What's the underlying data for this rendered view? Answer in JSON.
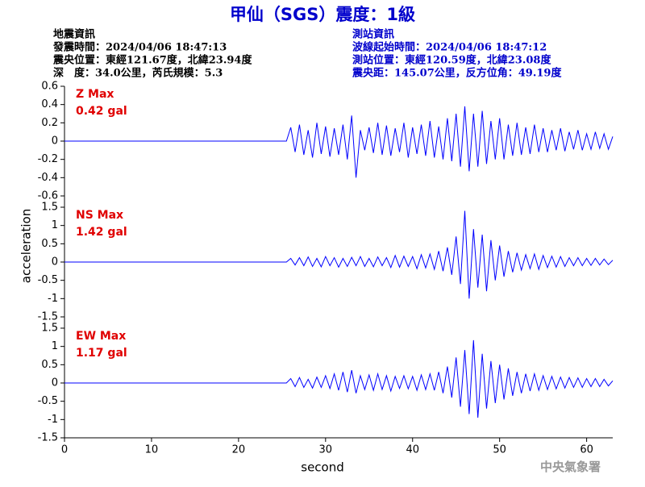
{
  "header": {
    "title": "甲仙（SGS）震度：1級",
    "left": [
      "地震資訊",
      "發震時間：2024/04/06 18:47:13",
      "震央位置：東經121.67度，北緯23.94度",
      "深　度：34.0公里，芮氏規模：5.3"
    ],
    "right": [
      "測站資訊",
      "波線起始時間：2024/04/06 18:47:12",
      "測站位置：東經120.59度，北緯23.08度",
      "震央距：145.07公里，反方位角：49.19度"
    ]
  },
  "footer": "中央氣象署",
  "chart_data": [
    {
      "type": "line",
      "color": "#0000ff",
      "annotations": [
        "Z Max",
        "0.42 gal"
      ],
      "xlim": [
        0,
        63
      ],
      "ylim": [
        -0.6,
        0.6
      ],
      "yticks": [
        -0.6,
        -0.4,
        -0.2,
        0,
        0.2,
        0.4,
        0.6
      ],
      "x": [
        0,
        25.5,
        26,
        26.5,
        27,
        27.5,
        28,
        28.5,
        29,
        29.5,
        30,
        30.5,
        31,
        31.5,
        32,
        32.5,
        33,
        33.5,
        34,
        34.5,
        35,
        35.5,
        36,
        36.5,
        37,
        37.5,
        38,
        38.5,
        39,
        39.5,
        40,
        40.5,
        41,
        41.5,
        42,
        42.5,
        43,
        43.5,
        44,
        44.5,
        45,
        45.5,
        46,
        46.5,
        47,
        47.5,
        48,
        48.5,
        49,
        49.5,
        50,
        50.5,
        51,
        51.5,
        52,
        52.5,
        53,
        53.5,
        54,
        54.5,
        55,
        55.5,
        56,
        56.5,
        57,
        57.5,
        58,
        58.5,
        59,
        59.5,
        60,
        60.5,
        61,
        61.5,
        62,
        62.5,
        63
      ],
      "values": [
        0,
        0,
        0.15,
        -0.12,
        0.18,
        -0.15,
        0.12,
        -0.18,
        0.2,
        -0.14,
        0.16,
        -0.17,
        0.14,
        -0.15,
        0.18,
        -0.2,
        0.28,
        -0.4,
        0.12,
        -0.1,
        0.15,
        -0.13,
        0.2,
        -0.15,
        0.17,
        -0.16,
        0.14,
        -0.12,
        0.2,
        -0.18,
        0.15,
        -0.14,
        0.18,
        -0.16,
        0.22,
        -0.18,
        0.16,
        -0.2,
        0.25,
        -0.22,
        0.3,
        -0.28,
        0.38,
        -0.33,
        0.3,
        -0.28,
        0.33,
        -0.25,
        0.22,
        -0.2,
        0.25,
        -0.2,
        0.18,
        -0.16,
        0.2,
        -0.15,
        0.15,
        -0.14,
        0.18,
        -0.12,
        0.14,
        -0.12,
        0.12,
        -0.1,
        0.14,
        -0.11,
        0.1,
        -0.09,
        0.12,
        -0.1,
        0.08,
        -0.09,
        0.1,
        -0.08,
        0.08,
        -0.09,
        0.05
      ]
    },
    {
      "type": "line",
      "color": "#0000ff",
      "annotations": [
        "NS Max",
        "1.42 gal"
      ],
      "y_label": "acceleration",
      "xlim": [
        0,
        63
      ],
      "ylim": [
        -1.5,
        1.5
      ],
      "yticks": [
        -1.5,
        -1,
        -0.5,
        0,
        0.5,
        1,
        1.5
      ],
      "x": [
        0,
        25.5,
        26,
        26.5,
        27,
        27.5,
        28,
        28.5,
        29,
        29.5,
        30,
        30.5,
        31,
        31.5,
        32,
        32.5,
        33,
        33.5,
        34,
        34.5,
        35,
        35.5,
        36,
        36.5,
        37,
        37.5,
        38,
        38.5,
        39,
        39.5,
        40,
        40.5,
        41,
        41.5,
        42,
        42.5,
        43,
        43.5,
        44,
        44.5,
        45,
        45.5,
        46,
        46.5,
        47,
        47.5,
        48,
        48.5,
        49,
        49.5,
        50,
        50.5,
        51,
        51.5,
        52,
        52.5,
        53,
        53.5,
        54,
        54.5,
        55,
        55.5,
        56,
        56.5,
        57,
        57.5,
        58,
        58.5,
        59,
        59.5,
        60,
        60.5,
        61,
        61.5,
        62,
        62.5,
        63
      ],
      "values": [
        0,
        0,
        0.1,
        -0.08,
        0.12,
        -0.1,
        0.14,
        -0.12,
        0.1,
        -0.13,
        0.15,
        -0.1,
        0.12,
        -0.14,
        0.1,
        -0.12,
        0.13,
        -0.1,
        0.15,
        -0.12,
        0.1,
        -0.13,
        0.14,
        -0.1,
        0.12,
        -0.15,
        0.18,
        -0.14,
        0.16,
        -0.12,
        0.15,
        -0.18,
        0.2,
        -0.16,
        0.22,
        -0.2,
        0.3,
        -0.25,
        0.4,
        -0.35,
        0.7,
        -0.6,
        1.4,
        -1.0,
        0.9,
        -0.7,
        0.75,
        -0.8,
        0.6,
        -0.5,
        0.45,
        -0.4,
        0.3,
        -0.28,
        0.25,
        -0.22,
        0.2,
        -0.18,
        0.22,
        -0.2,
        0.18,
        -0.15,
        0.16,
        -0.14,
        0.15,
        -0.12,
        0.12,
        -0.1,
        0.12,
        -0.1,
        0.1,
        -0.09,
        0.1,
        -0.08,
        0.08,
        -0.07,
        0.05
      ]
    },
    {
      "type": "line",
      "color": "#0000ff",
      "annotations": [
        "EW Max",
        "1.17 gal"
      ],
      "x_label": "second",
      "xlim": [
        0,
        63
      ],
      "xticks": [
        0,
        10,
        20,
        30,
        40,
        50,
        60
      ],
      "ylim": [
        -1.5,
        1.5
      ],
      "yticks": [
        -1.5,
        -1,
        -0.5,
        0,
        0.5,
        1,
        1.5
      ],
      "x": [
        0,
        25.5,
        26,
        26.5,
        27,
        27.5,
        28,
        28.5,
        29,
        29.5,
        30,
        30.5,
        31,
        31.5,
        32,
        32.5,
        33,
        33.5,
        34,
        34.5,
        35,
        35.5,
        36,
        36.5,
        37,
        37.5,
        38,
        38.5,
        39,
        39.5,
        40,
        40.5,
        41,
        41.5,
        42,
        42.5,
        43,
        43.5,
        44,
        44.5,
        45,
        45.5,
        46,
        46.5,
        47,
        47.5,
        48,
        48.5,
        49,
        49.5,
        50,
        50.5,
        51,
        51.5,
        52,
        52.5,
        53,
        53.5,
        54,
        54.5,
        55,
        55.5,
        56,
        56.5,
        57,
        57.5,
        58,
        58.5,
        59,
        59.5,
        60,
        60.5,
        61,
        61.5,
        62,
        62.5,
        63
      ],
      "values": [
        0,
        0,
        0.12,
        -0.1,
        0.15,
        -0.12,
        0.1,
        -0.14,
        0.16,
        -0.12,
        0.2,
        -0.15,
        0.25,
        -0.2,
        0.3,
        -0.25,
        0.35,
        -0.28,
        0.2,
        -0.18,
        0.22,
        -0.2,
        0.25,
        -0.18,
        0.2,
        -0.22,
        0.18,
        -0.15,
        0.2,
        -0.16,
        0.18,
        -0.2,
        0.22,
        -0.18,
        0.25,
        -0.2,
        0.3,
        -0.28,
        0.45,
        -0.4,
        0.7,
        -0.65,
        0.9,
        -0.85,
        1.17,
        -0.95,
        0.8,
        -0.7,
        0.6,
        -0.55,
        0.5,
        -0.45,
        0.4,
        -0.35,
        0.3,
        -0.28,
        0.25,
        -0.22,
        0.25,
        -0.2,
        0.2,
        -0.18,
        0.18,
        -0.16,
        0.16,
        -0.14,
        0.15,
        -0.12,
        0.14,
        -0.12,
        0.12,
        -0.1,
        0.12,
        -0.1,
        0.1,
        -0.08,
        0.06
      ]
    }
  ]
}
